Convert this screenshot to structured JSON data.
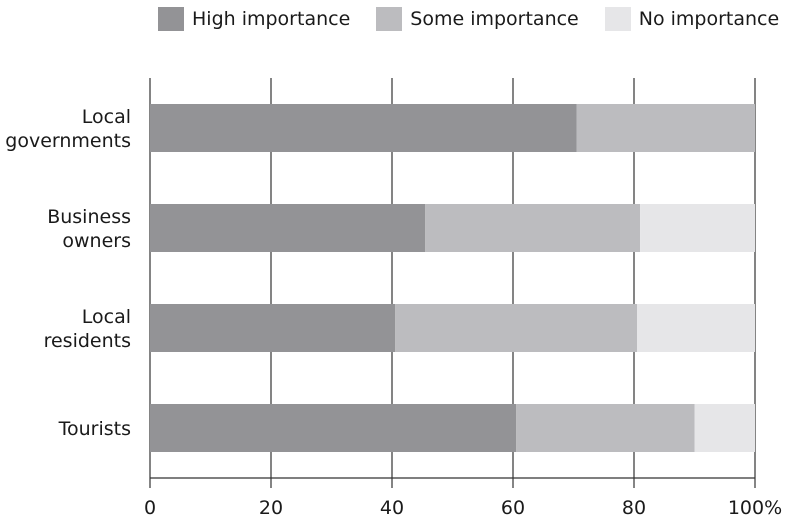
{
  "chart_data": {
    "type": "bar",
    "orientation": "horizontal",
    "stacked": true,
    "categories": [
      "Local governments",
      "Business owners",
      "Local residents",
      "Tourists"
    ],
    "category_label_lines": [
      [
        "Local",
        "governments"
      ],
      [
        "Business",
        "owners"
      ],
      [
        "Local",
        "residents"
      ],
      [
        "Tourists"
      ]
    ],
    "series": [
      {
        "name": "High importance",
        "values": [
          70.5,
          45.5,
          40.5,
          60.5
        ],
        "color": "#939396"
      },
      {
        "name": "Some importance",
        "values": [
          29.5,
          35.5,
          40.0,
          29.5
        ],
        "color": "#bcbcbf"
      },
      {
        "name": "No importance",
        "values": [
          0,
          19.0,
          19.5,
          10.0
        ],
        "color": "#e6e6e8"
      }
    ],
    "xlim": [
      0,
      100
    ],
    "xticks": [
      0,
      20,
      40,
      60,
      80,
      100
    ],
    "xtick_labels": [
      "0",
      "20",
      "40",
      "60",
      "80",
      "100%"
    ],
    "title": "",
    "xlabel": "",
    "ylabel": "",
    "grid": "vertical",
    "legend": "top"
  }
}
